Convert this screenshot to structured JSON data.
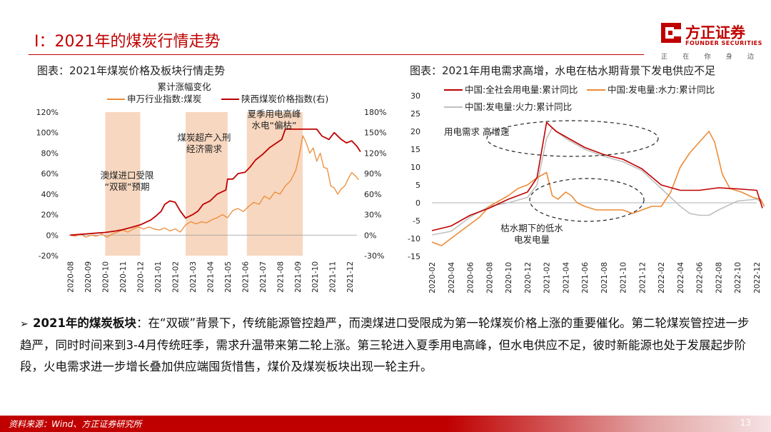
{
  "header": {
    "title": "Ⅰ：2021年的煤炭行情走势",
    "logo_name": "方正证券",
    "logo_en": "FOUNDER SECURITIES",
    "slogan": [
      "正",
      "在",
      "你",
      "身",
      "边"
    ],
    "accent_color": "#c00000"
  },
  "left_chart": {
    "caption": "图表：2021年煤炭价格及板块行情走势",
    "legend_title": "累计涨幅变化",
    "legend_items": [
      "申万行业指数:煤炭",
      "陕西煤炭价格指数(右)"
    ],
    "annotations": [
      "澳煤进口受限",
      "“双碳”预期",
      "煤炭超产入刑",
      "经济需求",
      "夏季用电高峰",
      "水电“偏枯”"
    ]
  },
  "right_chart": {
    "caption": "图表：2021年用电需求高增，水电在枯水期背景下发电供应不足",
    "legend_items": [
      "中国:全社会用电量:累计同比",
      "中国:发电量:水力:累计同比",
      "中国:发电量:火力:累计同比"
    ],
    "annotations": [
      "用电需求 高增速",
      "枯水期下的低水",
      "电发电量"
    ]
  },
  "summary": {
    "arrow": "➢",
    "lead": "2021年的煤炭板块",
    "text": "：在“双碳”背景下，传统能源管控趋严，而澳煤进口受限成为第一轮煤炭价格上涨的重要催化。第二轮煤炭管控进一步趋严，同时时间来到3-4月传统旺季，需求升温带来第二轮上涨。第三轮进入夏季用电高峰，但水电供应不足，彼时新能源也处于发展起步阶段，火电需求进一步增长叠加供应端囤货惜售，煤价及煤炭板块出现一轮主升。"
  },
  "footer": {
    "source": "资料来源：Wind、方正证券研究所",
    "page": "13"
  },
  "chart_data": [
    {
      "type": "line",
      "title": "2021年煤炭价格及板块行情走势",
      "legend_title": "累计涨幅变化",
      "x_ticks": [
        "2020-08",
        "2020-09",
        "2020-10",
        "2020-11",
        "2020-12",
        "2021-01",
        "2021-02",
        "2021-03",
        "2021-04",
        "2021-05",
        "2021-06",
        "2021-07",
        "2021-08",
        "2021-09",
        "2021-10",
        "2021-11",
        "2021-12"
      ],
      "y_left": {
        "ticks": [
          "120%",
          "100%",
          "80%",
          "60%",
          "40%",
          "20%",
          "0%",
          "-20%"
        ],
        "range": [
          -20,
          120
        ],
        "unit": "%"
      },
      "y_right": {
        "ticks": [
          "180%",
          "150%",
          "120%",
          "90%",
          "60%",
          "30%",
          "0%",
          "-30%"
        ],
        "range": [
          -30,
          180
        ],
        "unit": "%"
      },
      "shaded_periods": [
        [
          2.0,
          4.0
        ],
        [
          6.6,
          9.0
        ],
        [
          10.1,
          13.3
        ]
      ],
      "series": [
        {
          "name": "申万行业指数:煤炭",
          "axis": "left",
          "color": "#ed8b37",
          "points": [
            [
              0,
              0
            ],
            [
              0.3,
              -1
            ],
            [
              0.6,
              1
            ],
            [
              0.9,
              -2
            ],
            [
              1.2,
              0
            ],
            [
              1.5,
              -1
            ],
            [
              1.8,
              1
            ],
            [
              2.1,
              -2
            ],
            [
              2.4,
              1
            ],
            [
              2.7,
              3
            ],
            [
              3.0,
              5
            ],
            [
              3.3,
              3
            ],
            [
              3.6,
              6
            ],
            [
              3.9,
              8
            ],
            [
              4.2,
              6
            ],
            [
              4.5,
              8
            ],
            [
              4.8,
              6
            ],
            [
              5.1,
              5
            ],
            [
              5.4,
              7
            ],
            [
              5.7,
              4
            ],
            [
              6.0,
              6
            ],
            [
              6.3,
              3
            ],
            [
              6.6,
              10
            ],
            [
              6.9,
              13
            ],
            [
              7.2,
              11
            ],
            [
              7.5,
              13
            ],
            [
              7.8,
              12
            ],
            [
              8.1,
              15
            ],
            [
              8.4,
              17
            ],
            [
              8.7,
              20
            ],
            [
              9.0,
              17
            ],
            [
              9.3,
              24
            ],
            [
              9.6,
              26
            ],
            [
              9.9,
              23
            ],
            [
              10.2,
              28
            ],
            [
              10.5,
              32
            ],
            [
              10.8,
              30
            ],
            [
              11.1,
              38
            ],
            [
              11.4,
              35
            ],
            [
              11.7,
              42
            ],
            [
              12.0,
              40
            ],
            [
              12.3,
              48
            ],
            [
              12.6,
              53
            ],
            [
              12.9,
              63
            ],
            [
              13.1,
              78
            ],
            [
              13.3,
              97
            ],
            [
              13.5,
              90
            ],
            [
              13.7,
              80
            ],
            [
              13.9,
              85
            ],
            [
              14.1,
              72
            ],
            [
              14.3,
              80
            ],
            [
              14.5,
              66
            ],
            [
              14.7,
              65
            ],
            [
              14.9,
              48
            ],
            [
              15.1,
              46
            ],
            [
              15.3,
              40
            ],
            [
              15.5,
              45
            ],
            [
              15.7,
              48
            ],
            [
              15.9,
              55
            ],
            [
              16.1,
              61
            ],
            [
              16.3,
              58
            ],
            [
              16.5,
              54
            ]
          ]
        },
        {
          "name": "陕西煤炭价格指数(右)",
          "axis": "right",
          "color": "#c00000",
          "points": [
            [
              0,
              0
            ],
            [
              1.0,
              2
            ],
            [
              2.0,
              4
            ],
            [
              2.6,
              6
            ],
            [
              3.0,
              8
            ],
            [
              3.6,
              12
            ],
            [
              4.0,
              15
            ],
            [
              4.6,
              22
            ],
            [
              4.9,
              28
            ],
            [
              5.2,
              35
            ],
            [
              5.4,
              45
            ],
            [
              5.7,
              50
            ],
            [
              6.0,
              48
            ],
            [
              6.3,
              35
            ],
            [
              6.6,
              25
            ],
            [
              7.0,
              30
            ],
            [
              7.3,
              35
            ],
            [
              7.6,
              45
            ],
            [
              8.0,
              50
            ],
            [
              8.4,
              60
            ],
            [
              8.9,
              66
            ],
            [
              9.0,
              82
            ],
            [
              9.3,
              82
            ],
            [
              9.6,
              90
            ],
            [
              10.0,
              92
            ],
            [
              10.3,
              100
            ],
            [
              10.6,
              110
            ],
            [
              11.0,
              118
            ],
            [
              11.4,
              128
            ],
            [
              11.8,
              135
            ],
            [
              12.1,
              140
            ],
            [
              12.3,
              155
            ],
            [
              13.0,
              155
            ],
            [
              14.1,
              155
            ],
            [
              14.4,
              145
            ],
            [
              14.8,
              140
            ],
            [
              15.1,
              150
            ],
            [
              15.5,
              140
            ],
            [
              15.8,
              135
            ],
            [
              16.1,
              138
            ],
            [
              16.4,
              130
            ],
            [
              16.6,
              122
            ]
          ]
        }
      ]
    },
    {
      "type": "line",
      "title": "2021年用电需求高增，水电在枯水期背景下发电供应不足",
      "x_ticks": [
        "2020-02",
        "2020-04",
        "2020-06",
        "2020-08",
        "2020-10",
        "2020-12",
        "2021-02",
        "2021-04",
        "2021-06",
        "2021-08",
        "2021-10",
        "2021-12",
        "2022-02",
        "2022-04",
        "2022-06",
        "2022-08",
        "2022-10",
        "2022-12"
      ],
      "y_ticks": [
        "30",
        "25",
        "20",
        "15",
        "10",
        "5",
        "0",
        "-5",
        "-10",
        "-15"
      ],
      "ylim": [
        -15,
        30
      ],
      "series": [
        {
          "name": "中国:全社会用电量:累计同比",
          "color": "#c00000",
          "points": [
            [
              0,
              -7.8
            ],
            [
              1,
              -6.5
            ],
            [
              2,
              -3.5
            ],
            [
              3,
              -1.5
            ],
            [
              4,
              1
            ],
            [
              5,
              3
            ],
            [
              5.5,
              7
            ],
            [
              6,
              22.5
            ],
            [
              6.5,
              20
            ],
            [
              7,
              18.5
            ],
            [
              8,
              15.5
            ],
            [
              9,
              13.5
            ],
            [
              10,
              12.2
            ],
            [
              11,
              9.5
            ],
            [
              12,
              5
            ],
            [
              13,
              3.5
            ],
            [
              14,
              3.5
            ],
            [
              15,
              4.2
            ],
            [
              16,
              3.9
            ],
            [
              17,
              3.5
            ],
            [
              17.3,
              -1.5
            ]
          ]
        },
        {
          "name": "中国:发电量:水力:累计同比",
          "color": "#ed8b37",
          "points": [
            [
              0,
              -11
            ],
            [
              0.5,
              -12
            ],
            [
              1,
              -10
            ],
            [
              1.5,
              -8
            ],
            [
              2,
              -6
            ],
            [
              2.5,
              -4
            ],
            [
              3,
              -1
            ],
            [
              4,
              2
            ],
            [
              4.5,
              4
            ],
            [
              5,
              5
            ],
            [
              5.5,
              7
            ],
            [
              6,
              8.5
            ],
            [
              6.3,
              2
            ],
            [
              6.6,
              1
            ],
            [
              7,
              3
            ],
            [
              7.3,
              2
            ],
            [
              7.6,
              0
            ],
            [
              8,
              -1
            ],
            [
              8.6,
              -2
            ],
            [
              9,
              -2
            ],
            [
              10,
              -2
            ],
            [
              10.5,
              -3
            ],
            [
              11,
              -2
            ],
            [
              11.5,
              -1
            ],
            [
              12,
              -1
            ],
            [
              12.5,
              3
            ],
            [
              13,
              10
            ],
            [
              13.5,
              14
            ],
            [
              14,
              17
            ],
            [
              14.5,
              20
            ],
            [
              14.8,
              17
            ],
            [
              15.2,
              8
            ],
            [
              15.6,
              4
            ],
            [
              16.2,
              3
            ],
            [
              16.8,
              1.5
            ],
            [
              17.2,
              1
            ],
            [
              17.4,
              -1
            ]
          ]
        },
        {
          "name": "中国:发电量:火力:累计同比",
          "color": "#c0c0c0",
          "points": [
            [
              0,
              -9
            ],
            [
              1,
              -8
            ],
            [
              2,
              -4
            ],
            [
              3,
              -1
            ],
            [
              4,
              0
            ],
            [
              5,
              1.5
            ],
            [
              5.5,
              5
            ],
            [
              6,
              18
            ],
            [
              6.3,
              21
            ],
            [
              7,
              18
            ],
            [
              8,
              15
            ],
            [
              9,
              13
            ],
            [
              10,
              11.5
            ],
            [
              11,
              9
            ],
            [
              12,
              4
            ],
            [
              13,
              -1
            ],
            [
              13.5,
              -3
            ],
            [
              14,
              -3.5
            ],
            [
              14.5,
              -3.5
            ],
            [
              15,
              -2
            ],
            [
              16,
              0.5
            ],
            [
              17,
              1
            ],
            [
              17.3,
              0
            ]
          ]
        }
      ]
    }
  ]
}
